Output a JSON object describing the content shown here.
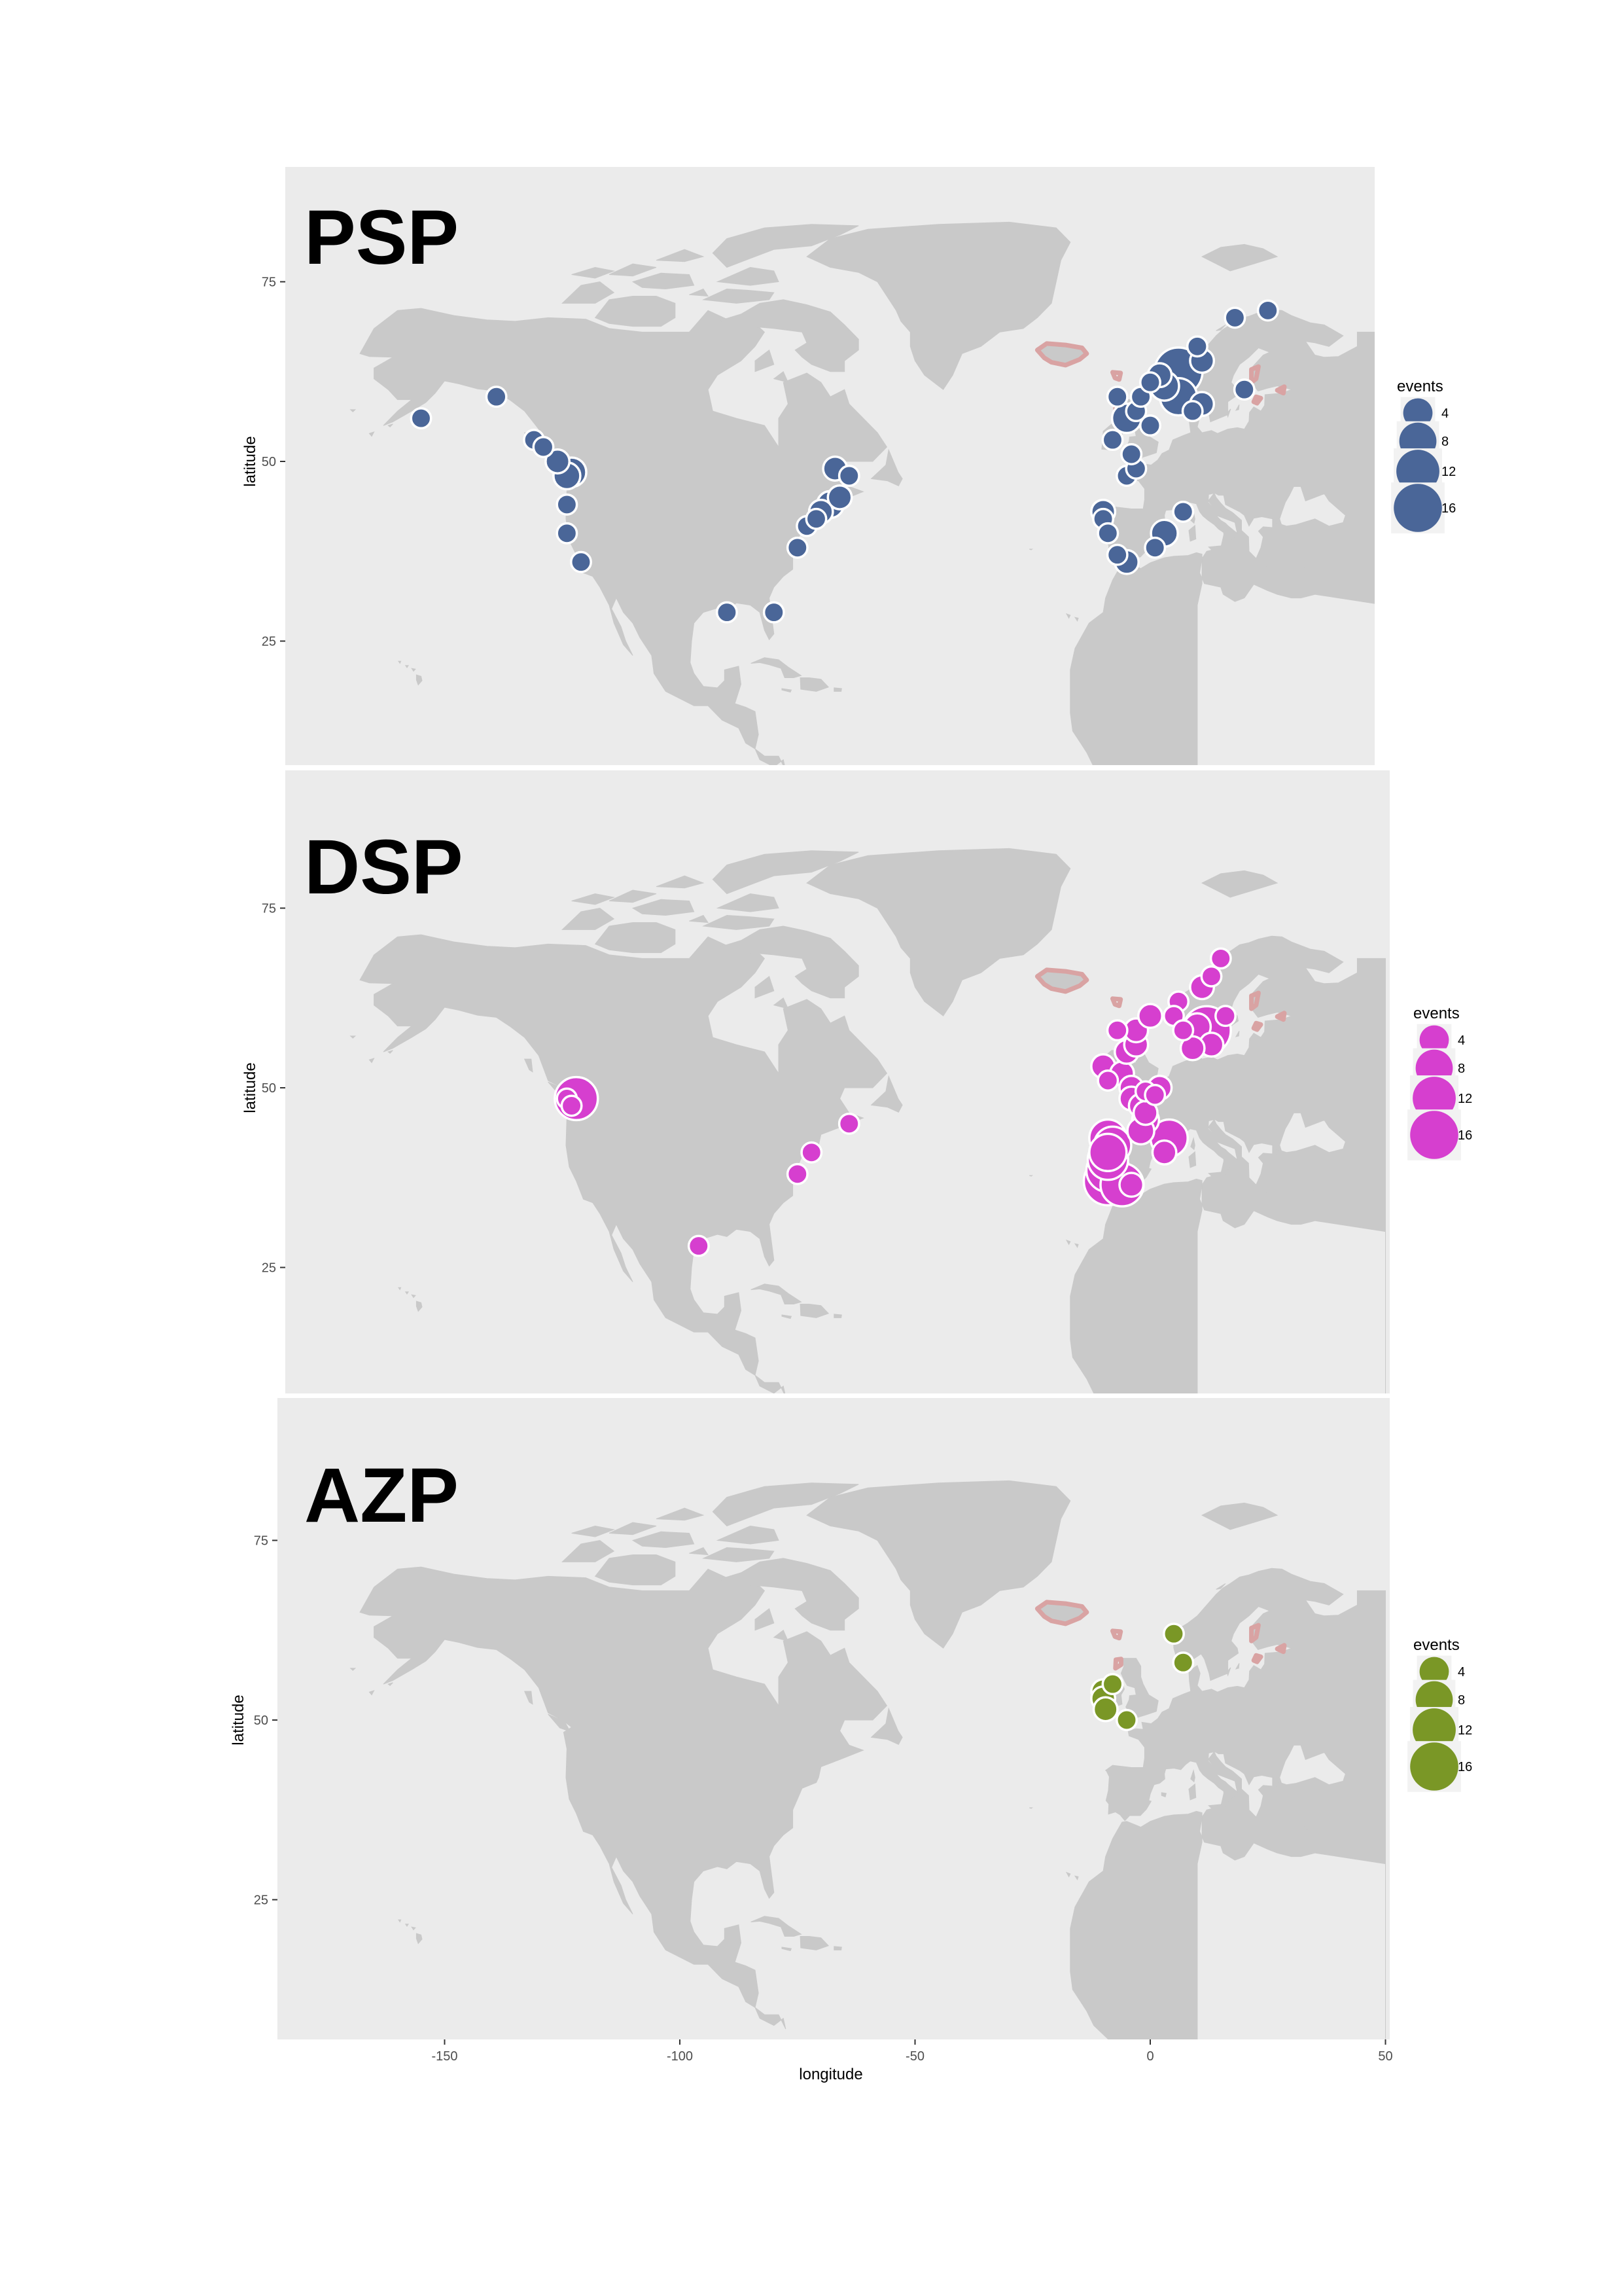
{
  "figure": {
    "x_axis_title": "longitude",
    "y_axis_title": "latitude",
    "x_ticks": [
      -150,
      -100,
      -50,
      0,
      50
    ],
    "y_ticks": [
      25,
      50,
      75
    ],
    "x_range": [
      -185,
      50
    ],
    "y_range": [
      3,
      92
    ],
    "colors": {
      "panel_background": "#ebebeb",
      "land": "#c9c9c9",
      "highlight_outline": "#d9a3a3",
      "psp": "#4a6698",
      "dsp": "#d63fcf",
      "azp": "#7a9726",
      "point_stroke": "#ffffff"
    }
  },
  "chart_data": [
    {
      "type": "scatter",
      "id": "psp",
      "title": "PSP",
      "xlabel": "longitude",
      "ylabel": "latitude",
      "xlim": [
        -185,
        50
      ],
      "ylim": [
        3,
        92
      ],
      "color": "#4a6698",
      "legend": {
        "title": "events",
        "position": "right",
        "sizes": [
          4,
          8,
          12,
          16
        ]
      },
      "points": [
        {
          "lon": -155,
          "lat": 56,
          "events": 1
        },
        {
          "lon": -139,
          "lat": 59,
          "events": 1
        },
        {
          "lon": -131,
          "lat": 53,
          "events": 1
        },
        {
          "lon": -129,
          "lat": 52,
          "events": 1
        },
        {
          "lon": -126,
          "lat": 50,
          "events": 2
        },
        {
          "lon": -124,
          "lat": 48,
          "events": 3
        },
        {
          "lon": -123,
          "lat": 48.5,
          "events": 4
        },
        {
          "lon": -124,
          "lat": 44,
          "events": 1
        },
        {
          "lon": -124,
          "lat": 40,
          "events": 1
        },
        {
          "lon": -121,
          "lat": 36,
          "events": 1
        },
        {
          "lon": -90,
          "lat": 29,
          "events": 1
        },
        {
          "lon": -80,
          "lat": 29,
          "events": 1
        },
        {
          "lon": -75,
          "lat": 38,
          "events": 1
        },
        {
          "lon": -73,
          "lat": 41,
          "events": 1
        },
        {
          "lon": -71,
          "lat": 42,
          "events": 1
        },
        {
          "lon": -70,
          "lat": 43,
          "events": 2
        },
        {
          "lon": -68,
          "lat": 44,
          "events": 3
        },
        {
          "lon": -66,
          "lat": 45,
          "events": 2
        },
        {
          "lon": -67,
          "lat": 49,
          "events": 2
        },
        {
          "lon": -64,
          "lat": 48,
          "events": 1
        },
        {
          "lon": -10,
          "lat": 43,
          "events": 2
        },
        {
          "lon": -10,
          "lat": 42,
          "events": 1
        },
        {
          "lon": -9,
          "lat": 40,
          "events": 1
        },
        {
          "lon": -7,
          "lat": 37,
          "events": 1
        },
        {
          "lon": -5,
          "lat": 36,
          "events": 2
        },
        {
          "lon": -5,
          "lat": 48,
          "events": 1
        },
        {
          "lon": -3,
          "lat": 49,
          "events": 1
        },
        {
          "lon": -4,
          "lat": 51,
          "events": 1
        },
        {
          "lon": -8,
          "lat": 53,
          "events": 1
        },
        {
          "lon": -5,
          "lat": 56,
          "events": 4
        },
        {
          "lon": -3,
          "lat": 57,
          "events": 1
        },
        {
          "lon": -2,
          "lat": 59,
          "events": 1
        },
        {
          "lon": -7,
          "lat": 59,
          "events": 1
        },
        {
          "lon": 0,
          "lat": 61,
          "events": 1
        },
        {
          "lon": 3,
          "lat": 40,
          "events": 3
        },
        {
          "lon": 7,
          "lat": 43,
          "events": 1
        },
        {
          "lon": 1,
          "lat": 38,
          "events": 1
        },
        {
          "lon": 6,
          "lat": 59,
          "events": 8
        },
        {
          "lon": 6,
          "lat": 62.5,
          "events": 16
        },
        {
          "lon": 11,
          "lat": 58,
          "events": 2
        },
        {
          "lon": 9,
          "lat": 57,
          "events": 1
        },
        {
          "lon": 3,
          "lat": 60.5,
          "events": 4
        },
        {
          "lon": 2,
          "lat": 62,
          "events": 2
        },
        {
          "lon": 11,
          "lat": 64,
          "events": 2
        },
        {
          "lon": 10,
          "lat": 66,
          "events": 1
        },
        {
          "lon": 18,
          "lat": 70,
          "events": 1
        },
        {
          "lon": 25,
          "lat": 71,
          "events": 1
        },
        {
          "lon": 20,
          "lat": 60,
          "events": 1
        },
        {
          "lon": 0,
          "lat": 55,
          "events": 1
        }
      ]
    },
    {
      "type": "scatter",
      "id": "dsp",
      "title": "DSP",
      "xlabel": "longitude",
      "ylabel": "latitude",
      "xlim": [
        -185,
        50
      ],
      "ylim": [
        3,
        92
      ],
      "color": "#d63fcf",
      "legend": {
        "title": "events",
        "position": "right",
        "sizes": [
          4,
          8,
          12,
          16
        ]
      },
      "points": [
        {
          "lon": -124,
          "lat": 48.5,
          "events": 1
        },
        {
          "lon": -123,
          "lat": 47.5,
          "events": 1
        },
        {
          "lon": -122,
          "lat": 48.5,
          "events": 12
        },
        {
          "lon": -96,
          "lat": 28,
          "events": 1
        },
        {
          "lon": -75,
          "lat": 38,
          "events": 1
        },
        {
          "lon": -72,
          "lat": 41,
          "events": 1
        },
        {
          "lon": -64,
          "lat": 45,
          "events": 1
        },
        {
          "lon": -9,
          "lat": 43,
          "events": 8
        },
        {
          "lon": -8,
          "lat": 42,
          "events": 8
        },
        {
          "lon": -9,
          "lat": 41,
          "events": 8
        },
        {
          "lon": -9,
          "lat": 40,
          "events": 10
        },
        {
          "lon": -9,
          "lat": 38.5,
          "events": 12
        },
        {
          "lon": -9,
          "lat": 37,
          "events": 16
        },
        {
          "lon": -6,
          "lat": 36.5,
          "events": 12
        },
        {
          "lon": -4,
          "lat": 36.5,
          "events": 2
        },
        {
          "lon": -10,
          "lat": 53,
          "events": 2
        },
        {
          "lon": -9,
          "lat": 51,
          "events": 1
        },
        {
          "lon": -6,
          "lat": 52,
          "events": 2
        },
        {
          "lon": -5,
          "lat": 55,
          "events": 2
        },
        {
          "lon": -3,
          "lat": 56,
          "events": 2
        },
        {
          "lon": -7,
          "lat": 58,
          "events": 1
        },
        {
          "lon": -3,
          "lat": 58,
          "events": 2
        },
        {
          "lon": 0,
          "lat": 60,
          "events": 2
        },
        {
          "lon": -4,
          "lat": 50,
          "events": 2
        },
        {
          "lon": -4,
          "lat": 48.5,
          "events": 2
        },
        {
          "lon": -2,
          "lat": 47.5,
          "events": 2
        },
        {
          "lon": -1,
          "lat": 46.5,
          "events": 2
        },
        {
          "lon": -1,
          "lat": 45.5,
          "events": 3
        },
        {
          "lon": -2,
          "lat": 44,
          "events": 3
        },
        {
          "lon": -1,
          "lat": 49.5,
          "events": 1
        },
        {
          "lon": 1,
          "lat": 49,
          "events": 1
        },
        {
          "lon": 2,
          "lat": 50,
          "events": 2
        },
        {
          "lon": 4,
          "lat": 43,
          "events": 8
        },
        {
          "lon": 3,
          "lat": 41,
          "events": 2
        },
        {
          "lon": 6,
          "lat": 62,
          "events": 1
        },
        {
          "lon": 5,
          "lat": 60,
          "events": 1
        },
        {
          "lon": 7,
          "lat": 58,
          "events": 1
        },
        {
          "lon": 10,
          "lat": 58.5,
          "events": 3
        },
        {
          "lon": 12,
          "lat": 58,
          "events": 16
        },
        {
          "lon": 13,
          "lat": 56,
          "events": 2
        },
        {
          "lon": 9,
          "lat": 55.5,
          "events": 2
        },
        {
          "lon": 11,
          "lat": 64,
          "events": 2
        },
        {
          "lon": 13,
          "lat": 65.5,
          "events": 1
        },
        {
          "lon": 15,
          "lat": 68,
          "events": 1
        },
        {
          "lon": 16,
          "lat": 60,
          "events": 1
        }
      ]
    },
    {
      "type": "scatter",
      "id": "azp",
      "title": "AZP",
      "xlabel": "longitude",
      "ylabel": "latitude",
      "xlim": [
        -185,
        50
      ],
      "ylim": [
        3,
        92
      ],
      "color": "#7a9726",
      "legend": {
        "title": "events",
        "position": "right",
        "sizes": [
          4,
          8,
          12,
          16
        ]
      },
      "points": [
        {
          "lon": -10,
          "lat": 54,
          "events": 2
        },
        {
          "lon": -10,
          "lat": 53,
          "events": 2
        },
        {
          "lon": -8,
          "lat": 55,
          "events": 1
        },
        {
          "lon": -9.5,
          "lat": 51.5,
          "events": 2
        },
        {
          "lon": -5,
          "lat": 50,
          "events": 1
        },
        {
          "lon": 5,
          "lat": 62,
          "events": 1
        },
        {
          "lon": 7,
          "lat": 58,
          "events": 1
        }
      ]
    }
  ]
}
